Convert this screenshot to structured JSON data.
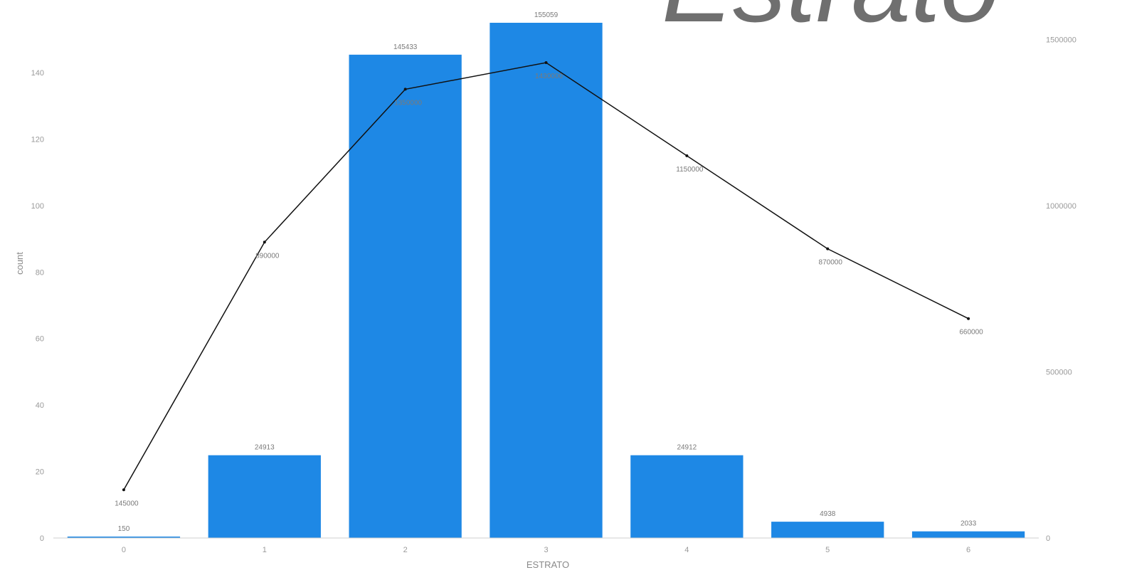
{
  "title": "Estrato",
  "chart_data": {
    "type": "bar",
    "categories": [
      "0",
      "1",
      "2",
      "3",
      "4",
      "5",
      "6"
    ],
    "xlabel": "ESTRATO",
    "ylabel": "count",
    "y2label": "",
    "ylim": [
      0,
      155
    ],
    "y2lim": [
      0,
      1550000
    ],
    "yticks": [
      0,
      20,
      40,
      60,
      80,
      100,
      120,
      140
    ],
    "y2ticks": [
      0,
      500000,
      1000000,
      1500000
    ],
    "grid": false,
    "series": [
      {
        "kind": "bar",
        "color": "#1e88e5",
        "values": [
          0.3,
          24.9,
          145.4,
          155,
          24.9,
          4.9,
          2.0
        ],
        "labels": [
          "150",
          "24913",
          "145433",
          "155059",
          "24912",
          "4938",
          "2033"
        ]
      },
      {
        "kind": "line",
        "axis": "right",
        "color": "#111111",
        "values": [
          145000,
          890000,
          1350000,
          1430000,
          1150000,
          870000,
          660000
        ],
        "labels": [
          "145000",
          "890000",
          "1350000",
          "1430000",
          "1150000",
          "870000",
          "660000"
        ]
      }
    ]
  }
}
